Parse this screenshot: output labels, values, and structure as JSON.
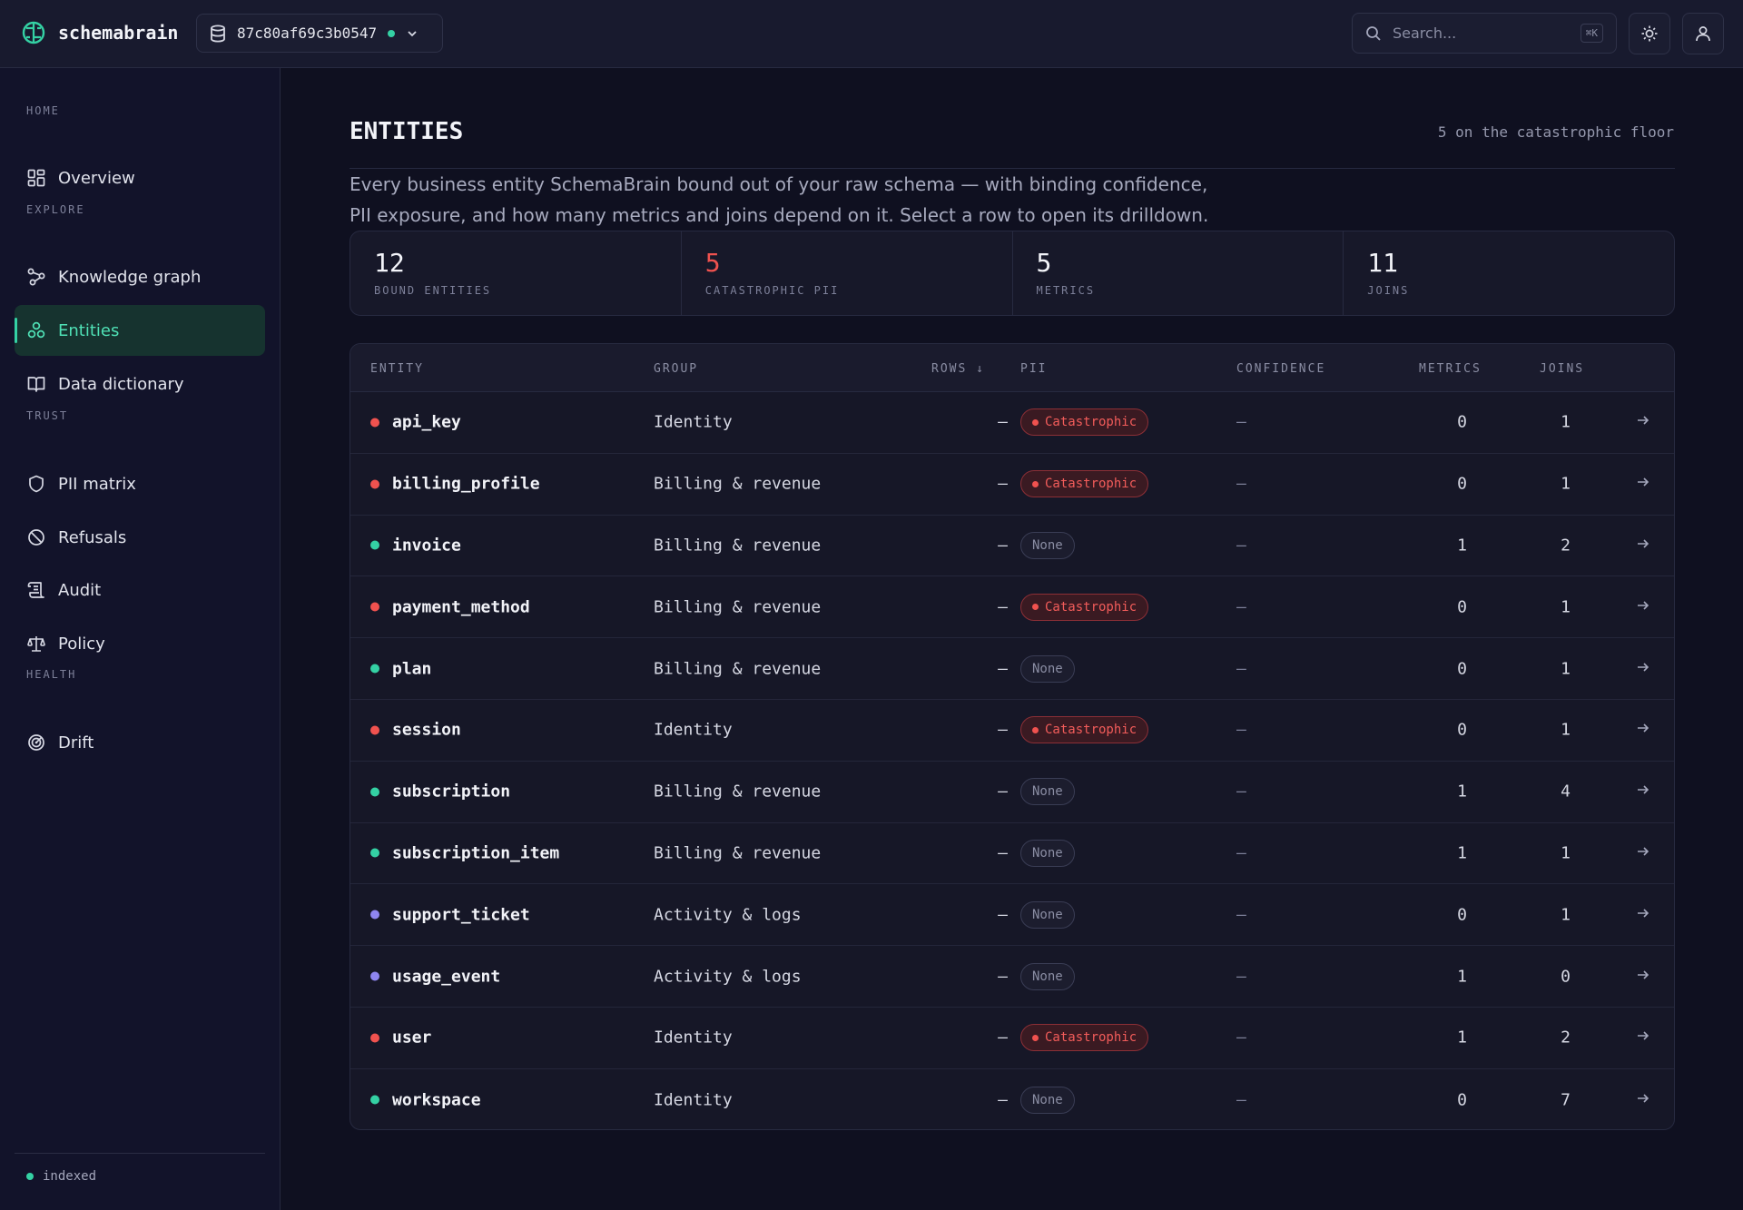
{
  "app": {
    "name": "schemabrain"
  },
  "database": {
    "id": "87c80af69c3b0547"
  },
  "search": {
    "placeholder": "Search...",
    "shortcut": "⌘K"
  },
  "sidebar": {
    "sections": [
      {
        "label": "HOME",
        "items": [
          {
            "label": "Overview",
            "icon": "grid-icon"
          }
        ]
      },
      {
        "label": "EXPLORE",
        "items": [
          {
            "label": "Knowledge graph",
            "icon": "graph-icon"
          },
          {
            "label": "Entities",
            "icon": "entities-icon",
            "active": true
          },
          {
            "label": "Data dictionary",
            "icon": "book-icon"
          }
        ]
      },
      {
        "label": "TRUST",
        "items": [
          {
            "label": "PII matrix",
            "icon": "shield-icon"
          },
          {
            "label": "Refusals",
            "icon": "ban-icon"
          },
          {
            "label": "Audit",
            "icon": "scroll-icon"
          },
          {
            "label": "Policy",
            "icon": "scale-icon"
          }
        ]
      },
      {
        "label": "HEALTH",
        "items": [
          {
            "label": "Drift",
            "icon": "radar-icon"
          }
        ]
      }
    ],
    "status": "indexed"
  },
  "main": {
    "title": "ENTITIES",
    "aside": "5 on the catastrophic floor",
    "description_line1": "Every business entity SchemaBrain bound out of your raw schema — with binding confidence,",
    "description_line2": "PII exposure, and how many metrics and joins depend on it. Select a row to open its drilldown."
  },
  "stats": [
    {
      "value": "12",
      "label": "BOUND ENTITIES"
    },
    {
      "value": "5",
      "label": "CATASTROPHIC PII",
      "highlight": "#f0524f"
    },
    {
      "value": "5",
      "label": "METRICS"
    },
    {
      "value": "11",
      "label": "JOINS"
    }
  ],
  "table": {
    "columns": {
      "entity": "ENTITY",
      "group": "GROUP",
      "rows": "ROWS ↓",
      "pii": "PII",
      "confidence": "CONFIDENCE",
      "metrics": "METRICS",
      "joins": "JOINS"
    },
    "rows": [
      {
        "entity": "api_key",
        "group": "Identity",
        "rows": "—",
        "pii": "Catastrophic",
        "confidence": "—",
        "metrics": "0",
        "joins": "1",
        "dot": "#f0524f"
      },
      {
        "entity": "billing_profile",
        "group": "Billing & revenue",
        "rows": "—",
        "pii": "Catastrophic",
        "confidence": "—",
        "metrics": "0",
        "joins": "1",
        "dot": "#f0524f"
      },
      {
        "entity": "invoice",
        "group": "Billing & revenue",
        "rows": "—",
        "pii": "None",
        "confidence": "—",
        "metrics": "1",
        "joins": "2",
        "dot": "#34d1a4"
      },
      {
        "entity": "payment_method",
        "group": "Billing & revenue",
        "rows": "—",
        "pii": "Catastrophic",
        "confidence": "—",
        "metrics": "0",
        "joins": "1",
        "dot": "#f0524f"
      },
      {
        "entity": "plan",
        "group": "Billing & revenue",
        "rows": "—",
        "pii": "None",
        "confidence": "—",
        "metrics": "0",
        "joins": "1",
        "dot": "#34d1a4"
      },
      {
        "entity": "session",
        "group": "Identity",
        "rows": "—",
        "pii": "Catastrophic",
        "confidence": "—",
        "metrics": "0",
        "joins": "1",
        "dot": "#f0524f"
      },
      {
        "entity": "subscription",
        "group": "Billing & revenue",
        "rows": "—",
        "pii": "None",
        "confidence": "—",
        "metrics": "1",
        "joins": "4",
        "dot": "#34d1a4"
      },
      {
        "entity": "subscription_item",
        "group": "Billing & revenue",
        "rows": "—",
        "pii": "None",
        "confidence": "—",
        "metrics": "1",
        "joins": "1",
        "dot": "#34d1a4"
      },
      {
        "entity": "support_ticket",
        "group": "Activity & logs",
        "rows": "—",
        "pii": "None",
        "confidence": "—",
        "metrics": "0",
        "joins": "1",
        "dot": "#8f86f0"
      },
      {
        "entity": "usage_event",
        "group": "Activity & logs",
        "rows": "—",
        "pii": "None",
        "confidence": "—",
        "metrics": "1",
        "joins": "0",
        "dot": "#8f86f0"
      },
      {
        "entity": "user",
        "group": "Identity",
        "rows": "—",
        "pii": "Catastrophic",
        "confidence": "—",
        "metrics": "1",
        "joins": "2",
        "dot": "#f0524f"
      },
      {
        "entity": "workspace",
        "group": "Identity",
        "rows": "—",
        "pii": "None",
        "confidence": "—",
        "metrics": "0",
        "joins": "7",
        "dot": "#34d1a4"
      }
    ]
  },
  "colors": {
    "accent": "#34d1a4",
    "danger": "#f0524f",
    "activity": "#8f86f0"
  }
}
